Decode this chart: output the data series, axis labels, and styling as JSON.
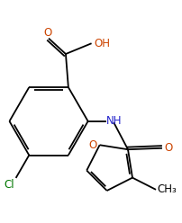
{
  "background_color": "#ffffff",
  "line_color": "#000000",
  "figsize": [
    2.02,
    2.48
  ],
  "dpi": 100,
  "bond_lw": 1.3,
  "text_colors": {
    "O": "#cc4400",
    "OH": "#cc4400",
    "NH": "#2222cc",
    "Cl": "#007700",
    "CH3": "#000000"
  },
  "fontsize": 8.5
}
